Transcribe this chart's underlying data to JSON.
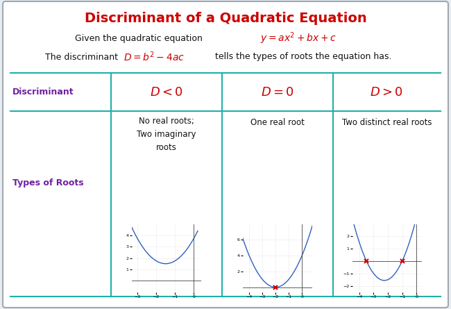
{
  "title": "Discriminant of a Quadratic Equation",
  "title_color": "#cc0000",
  "title_fontsize": 14,
  "bg_color": "#e8edf2",
  "border_color": "#a0a8b0",
  "teal_color": "#20b0a8",
  "purple_color": "#7020a0",
  "red_color": "#cc0000",
  "black_color": "#111111",
  "row1_label": "Discriminant",
  "row2_label": "Types of Roots",
  "col1_disc": "D < 0",
  "col2_disc": "D = 0",
  "col3_disc": "D > 0",
  "col1_roots": "No real roots;\nTwo imaginary\nroots",
  "col2_roots": "One real root",
  "col3_roots": "Two distinct real roots",
  "graph_color": "#3060c0",
  "marker_color": "#cc0000",
  "eq1_text": "Given the quadratic equation",
  "eq1_math": "$y = ax^2 + bx + c$",
  "eq2_pre": "The discriminant",
  "eq2_math": "$D = b^2 - 4ac$",
  "eq2_post": "tells the types of roots the equation has."
}
